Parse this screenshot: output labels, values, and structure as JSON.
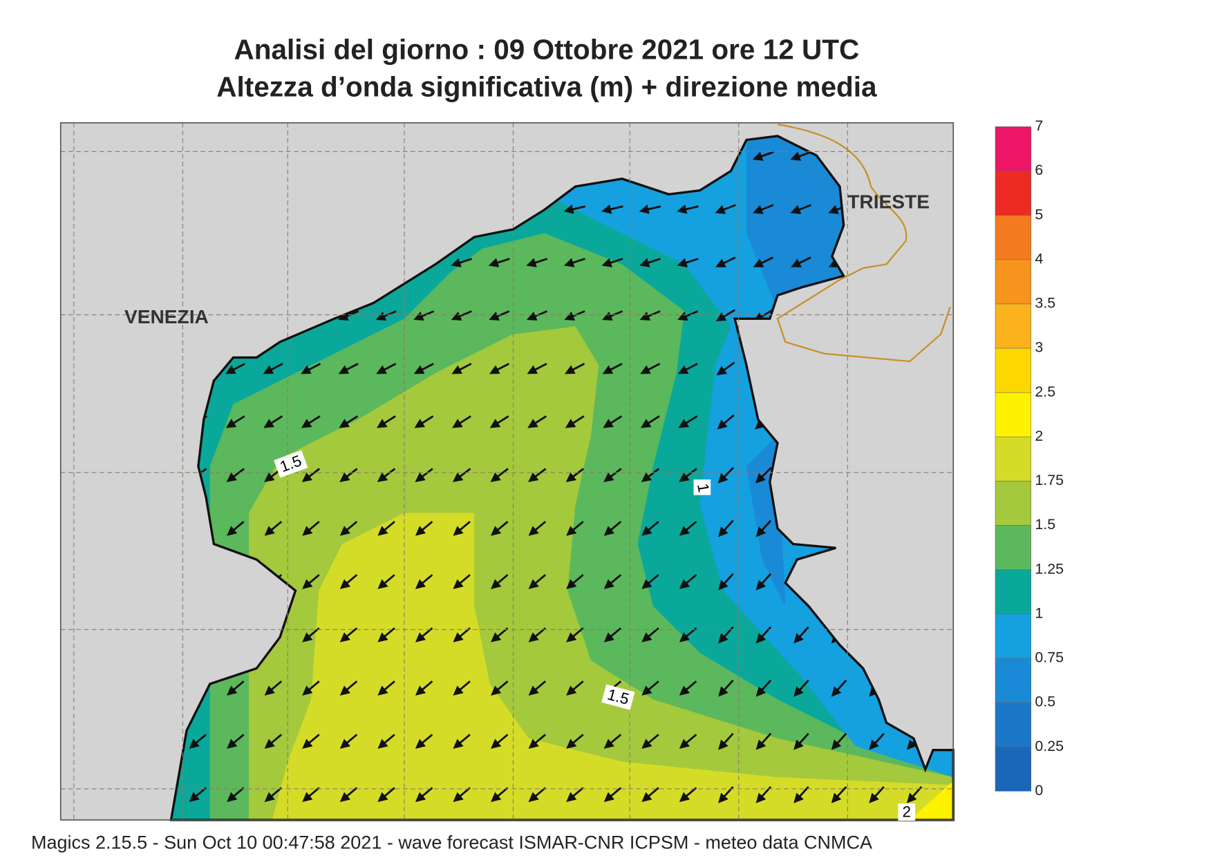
{
  "title": [
    "Analisi del giorno :  09  Ottobre  2021   ore 12 UTC",
    "Altezza d’onda significativa (m) + direzione media"
  ],
  "map": {
    "places": [
      "VENEZIA",
      "TRIESTE"
    ],
    "contour_labels": [
      "1.5",
      "1",
      "1.5",
      "2"
    ]
  },
  "colorbar": {
    "ticks": [
      0,
      0.25,
      0.5,
      0.75,
      1,
      1.25,
      1.5,
      1.75,
      2,
      2.5,
      3,
      3.5,
      4,
      5,
      6,
      7
    ],
    "colors": [
      "#1a66b8",
      "#1b78c8",
      "#1a8ad6",
      "#15a0e0",
      "#0aa89a",
      "#5cb85c",
      "#a4c93c",
      "#d4dc28",
      "#fff200",
      "#fcd800",
      "#fbb21c",
      "#f7941d",
      "#f47a20",
      "#ee2a24",
      "#ed1566"
    ]
  },
  "footer": "Magics 2.15.5 - Sun Oct 10 00:47:58 2021 - wave forecast  ISMAR-CNR  ICPSM - meteo data   CNMCA"
}
